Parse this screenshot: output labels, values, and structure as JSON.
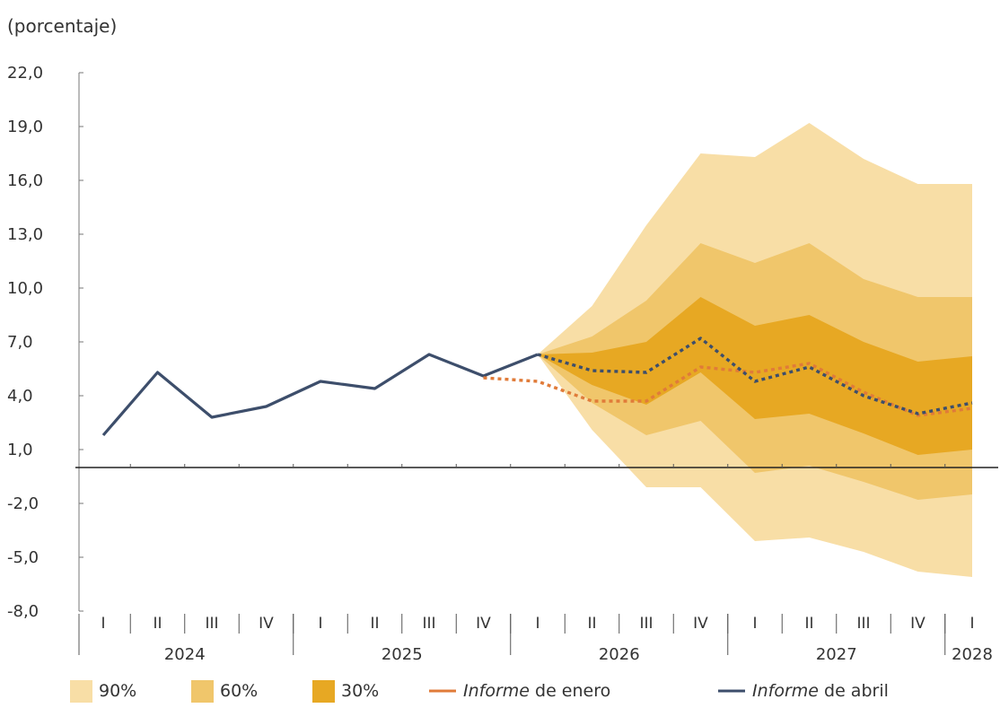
{
  "chart_data": {
    "type": "area",
    "ylabel": "(porcentaje)",
    "ylim": [
      -8,
      22
    ],
    "yticks": [
      22,
      19,
      16,
      13,
      10,
      7,
      4,
      1,
      -2,
      -5,
      -8
    ],
    "ytick_labels": [
      "22,0",
      "19,0",
      "16,0",
      "13,0",
      "10,0",
      "7,0",
      "4,0",
      "1,0",
      "-2,0",
      "-5,0",
      "-8,0"
    ],
    "quarters": [
      "I",
      "II",
      "III",
      "IV",
      "I",
      "II",
      "III",
      "IV",
      "I",
      "II",
      "III",
      "IV",
      "I",
      "II",
      "III",
      "IV",
      "I"
    ],
    "years": [
      {
        "label": "2024",
        "start": 0,
        "end": 3
      },
      {
        "label": "2025",
        "start": 4,
        "end": 7
      },
      {
        "label": "2026",
        "start": 8,
        "end": 11
      },
      {
        "label": "2027",
        "start": 12,
        "end": 15
      },
      {
        "label": "2028",
        "start": 16,
        "end": 16
      }
    ],
    "history": {
      "x": [
        0,
        1,
        2,
        3,
        4,
        5,
        6,
        7,
        8
      ],
      "values": [
        1.8,
        5.3,
        2.8,
        3.4,
        4.8,
        4.4,
        6.3,
        5.1,
        6.3
      ]
    },
    "series": [
      {
        "name": "Informe de enero",
        "color": "#e07b39",
        "x": [
          7,
          8,
          9,
          10,
          11,
          12,
          13,
          14,
          15,
          16
        ],
        "values": [
          5.0,
          4.8,
          3.7,
          3.7,
          5.6,
          5.3,
          5.8,
          4.2,
          2.9,
          3.3
        ]
      },
      {
        "name": "Informe de abril",
        "color": "#3d4e6b",
        "x": [
          8,
          9,
          10,
          11,
          12,
          13,
          14,
          15,
          16
        ],
        "values": [
          6.3,
          5.4,
          5.3,
          7.2,
          4.8,
          5.6,
          4.0,
          3.0,
          3.6
        ]
      }
    ],
    "fan_x": [
      8,
      9,
      10,
      11,
      12,
      13,
      14,
      15,
      16
    ],
    "bands": [
      {
        "name": "90%",
        "color": "#f8dea6",
        "upper": [
          6.3,
          9.0,
          13.5,
          17.5,
          17.3,
          19.2,
          17.2,
          15.8,
          15.8
        ],
        "lower": [
          6.3,
          2.1,
          -1.1,
          -1.1,
          -4.1,
          -3.9,
          -4.7,
          -5.8,
          -6.1
        ]
      },
      {
        "name": "60%",
        "color": "#f0c66b",
        "upper": [
          6.3,
          7.3,
          9.3,
          12.5,
          11.4,
          12.5,
          10.5,
          9.5,
          9.5
        ],
        "lower": [
          6.3,
          3.6,
          1.8,
          2.6,
          -0.3,
          0.1,
          -0.8,
          -1.8,
          -1.5
        ]
      },
      {
        "name": "30%",
        "color": "#e7a823",
        "upper": [
          6.3,
          6.4,
          7.0,
          9.5,
          7.9,
          8.5,
          7.0,
          5.9,
          6.2
        ],
        "lower": [
          6.3,
          4.6,
          3.5,
          5.3,
          2.7,
          3.0,
          1.9,
          0.7,
          1.0
        ]
      }
    ],
    "legend": [
      {
        "type": "swatch",
        "label": "90%",
        "color": "#f8dea6"
      },
      {
        "type": "swatch",
        "label": "60%",
        "color": "#f0c66b"
      },
      {
        "type": "swatch",
        "label": "30%",
        "color": "#e7a823"
      },
      {
        "type": "line",
        "italic": "Informe",
        "rest": " de enero",
        "color": "#e07b39"
      },
      {
        "type": "line",
        "italic": "Informe",
        "rest": " de abril",
        "color": "#3d4e6b"
      }
    ]
  }
}
